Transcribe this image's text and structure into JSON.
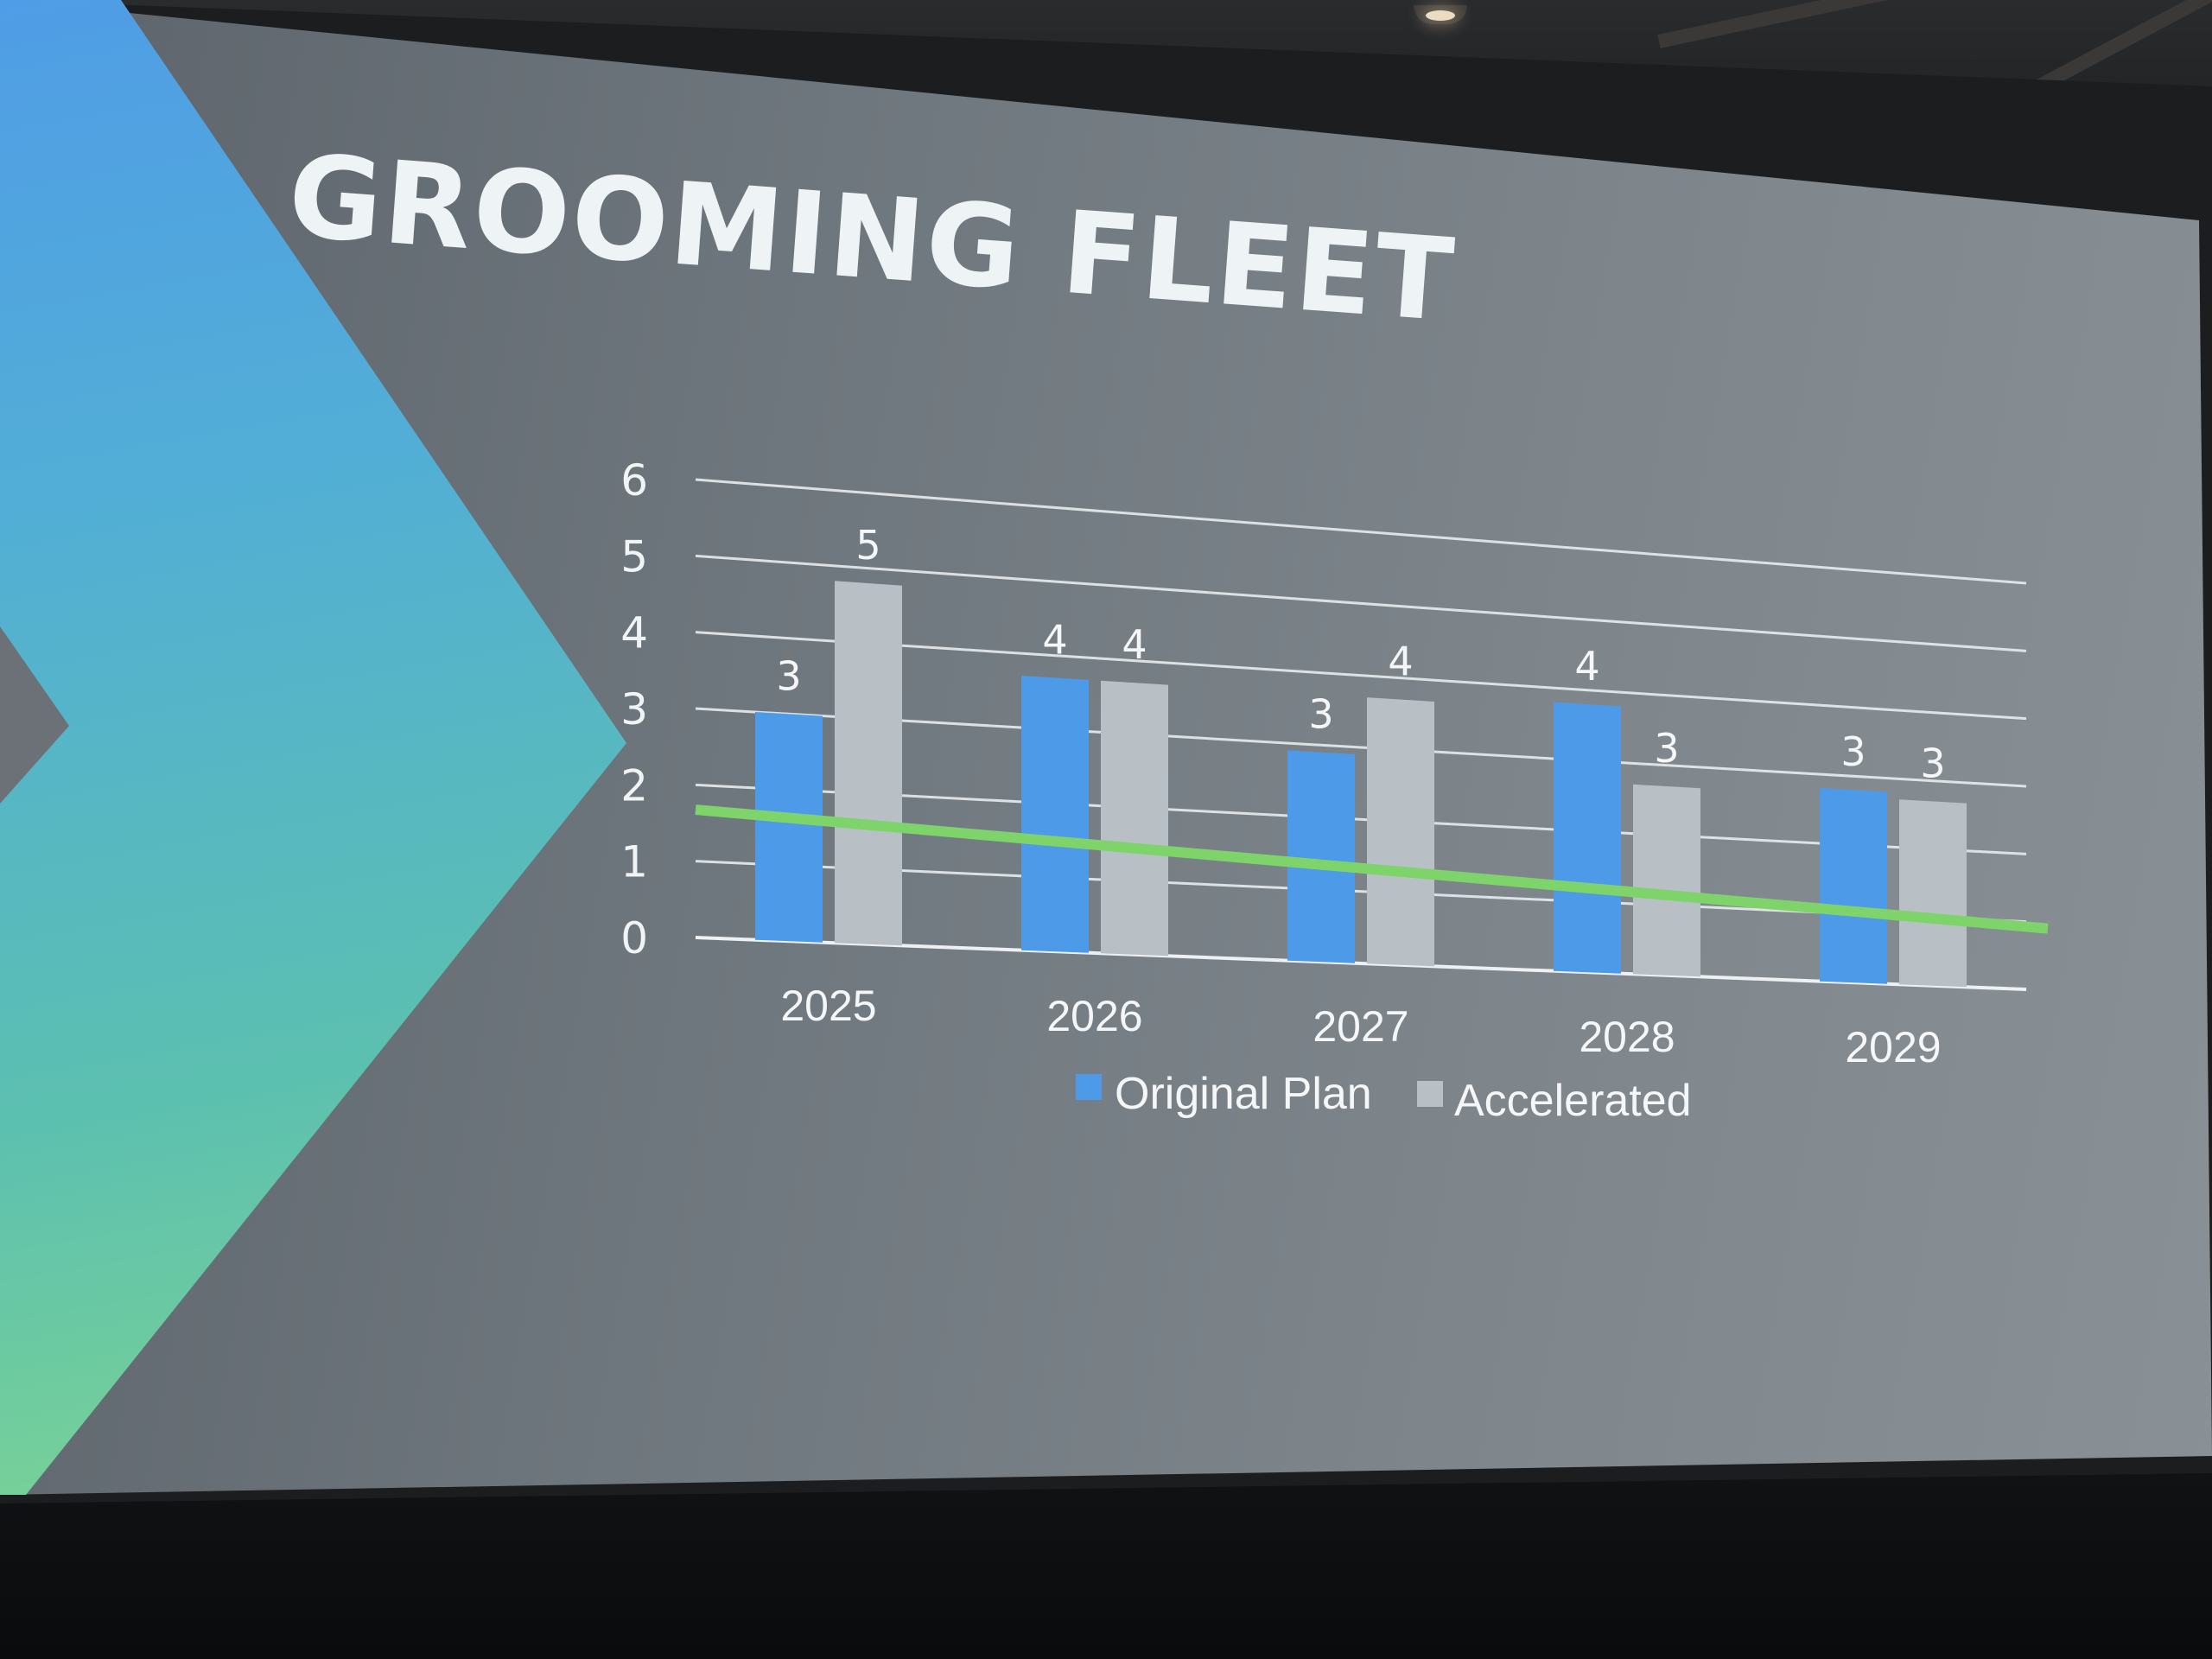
{
  "slide": {
    "title": "GROOMING FLEET"
  },
  "colors": {
    "original_plan": "#4d9ae8",
    "accelerated": "#b9c0c5",
    "trendline": "#7ed36b"
  },
  "chart_data": {
    "type": "bar",
    "title": "",
    "xlabel": "",
    "ylabel": "",
    "categories": [
      "2025",
      "2026",
      "2027",
      "2028",
      "2029"
    ],
    "series": [
      {
        "name": "Original Plan",
        "values": [
          3,
          3.7,
          2.9,
          3.8,
          2.8
        ],
        "labels": [
          "3",
          "4",
          "3",
          "4",
          "3"
        ]
      },
      {
        "name": "Accelerated",
        "values": [
          4.8,
          3.7,
          3.7,
          2.7,
          2.7
        ],
        "labels": [
          "5",
          "4",
          "4",
          "3",
          "3"
        ]
      }
    ],
    "trendline": {
      "series": "Original Plan",
      "values": [
        1.6,
        1.45,
        1.3,
        1.15,
        1.0
      ]
    },
    "ylim": [
      0,
      6
    ],
    "yticks": [
      "0",
      "1",
      "2",
      "3",
      "4",
      "5",
      "6"
    ],
    "grid": true,
    "legend": "bottom-center"
  }
}
